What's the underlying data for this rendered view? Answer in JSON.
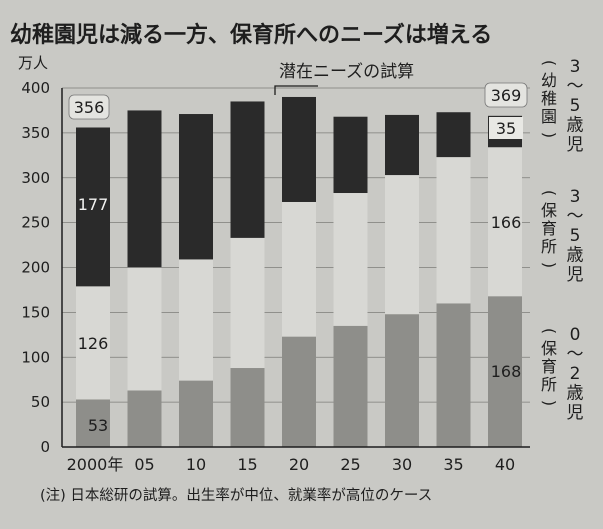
{
  "chart_data": {
    "type": "bar",
    "stacked": true,
    "title": "幼稚園児は減る一方、保育所へのニーズは増える",
    "unit_label": "万人",
    "y_ticks": [
      "0",
      "50",
      "100",
      "150",
      "200",
      "250",
      "300",
      "350",
      "400"
    ],
    "ylim": [
      0,
      400
    ],
    "categories": [
      "2000年",
      "05",
      "10",
      "15",
      "20",
      "25",
      "30",
      "35",
      "40"
    ],
    "estimate_label": "潜在ニーズの試算",
    "note": "(注) 日本総研の試算。出生率が中位、就業率が高位のケース",
    "series": [
      {
        "name": "0〜2歳児（保育所）",
        "legend_chars": [
          "0",
          "〜",
          "2",
          "歳",
          "児"
        ],
        "legend_paren": [
          "(",
          "保",
          "育",
          "所",
          ")"
        ],
        "values": [
          53,
          63,
          74,
          88,
          123,
          135,
          148,
          160,
          168
        ],
        "color": "#8e8e8a"
      },
      {
        "name": "3〜5歳児（保育所）",
        "legend_chars": [
          "3",
          "〜",
          "5",
          "歳",
          "児"
        ],
        "legend_paren": [
          "(",
          "保",
          "育",
          "所",
          ")"
        ],
        "values": [
          126,
          137,
          135,
          145,
          150,
          148,
          155,
          163,
          166
        ],
        "color": "#d8d8d4"
      },
      {
        "name": "3〜5歳児（幼稚園）",
        "legend_chars": [
          "3",
          "〜",
          "5",
          "歳",
          "児"
        ],
        "legend_paren": [
          "(",
          "幼",
          "稚",
          "園",
          ")"
        ],
        "values": [
          177,
          175,
          162,
          152,
          117,
          85,
          67,
          50,
          35
        ],
        "color": "#2a2a2a"
      }
    ],
    "data_labels": {
      "bottom_first": "53",
      "middle_first": "126",
      "top_first": "177",
      "total_first": "356",
      "bottom_last": "168",
      "middle_last": "166",
      "top_last": "35",
      "total_last": "369"
    }
  }
}
